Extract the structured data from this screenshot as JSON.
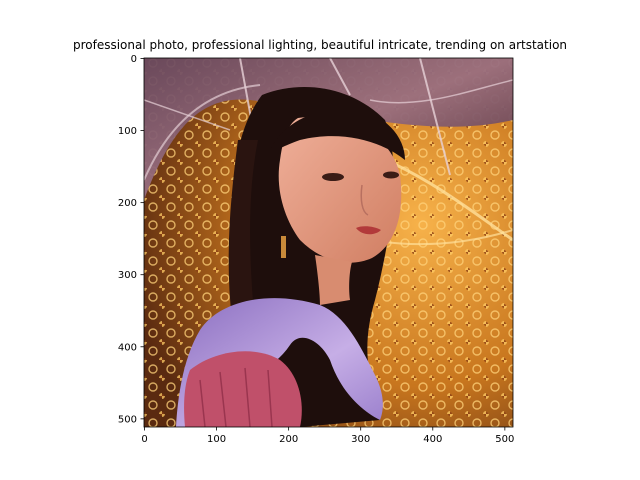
{
  "chart_data": {
    "type": "image",
    "title": "professional photo,  professional lighting,  beautiful  intricate,  trending on artstation",
    "xlabel": "",
    "ylabel": "",
    "xlim": [
      0,
      512
    ],
    "ylim": [
      512,
      0
    ],
    "x_ticks": [
      0,
      100,
      200,
      300,
      400,
      500
    ],
    "y_ticks": [
      0,
      100,
      200,
      300,
      400,
      500
    ],
    "grid": false,
    "image_description_colors": {
      "background": "#c8761e",
      "ornament_gold": "#f0a93a",
      "ornament_dark": "#5a2a10",
      "umbrella": "#8a5a70",
      "hair": "#1e0e0c",
      "skin": "#e39a7c",
      "scarf": "#b89ad8",
      "jacket": "#c0506a"
    }
  }
}
